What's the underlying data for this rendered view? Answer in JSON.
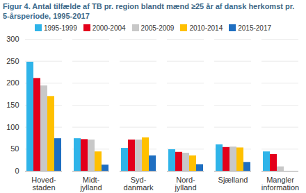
{
  "chart_data": {
    "type": "bar",
    "title": "Figur 4. Antal tilfælde af TB pr. region blandt mænd ≥25 år af dansk herkomst pr. 5-årsperiode, 1995-2017",
    "categories": [
      "Hoved-\nstaden",
      "Midt-\njylland",
      "Syd-\ndanmark",
      "Nord-\njylland",
      "Sjælland",
      "Mangler\ninformation"
    ],
    "series": [
      {
        "name": "1995-1999",
        "color": "#2fb4e9",
        "values": [
          248,
          74,
          52,
          49,
          60,
          44
        ]
      },
      {
        "name": "2000-2004",
        "color": "#e3001b",
        "values": [
          211,
          72,
          71,
          43,
          54,
          38
        ]
      },
      {
        "name": "2005-2009",
        "color": "#c8c8c8",
        "values": [
          194,
          71,
          71,
          41,
          55,
          10
        ]
      },
      {
        "name": "2010-2014",
        "color": "#ffc000",
        "values": [
          170,
          44,
          76,
          35,
          53,
          0
        ]
      },
      {
        "name": "2015-2017",
        "color": "#1f6fc1",
        "values": [
          74,
          14,
          35,
          15,
          20,
          0
        ]
      }
    ],
    "ylim": [
      0,
      300
    ],
    "yticks": [
      0,
      50,
      100,
      150,
      200,
      250,
      300
    ],
    "grid": true,
    "legend": "top"
  }
}
